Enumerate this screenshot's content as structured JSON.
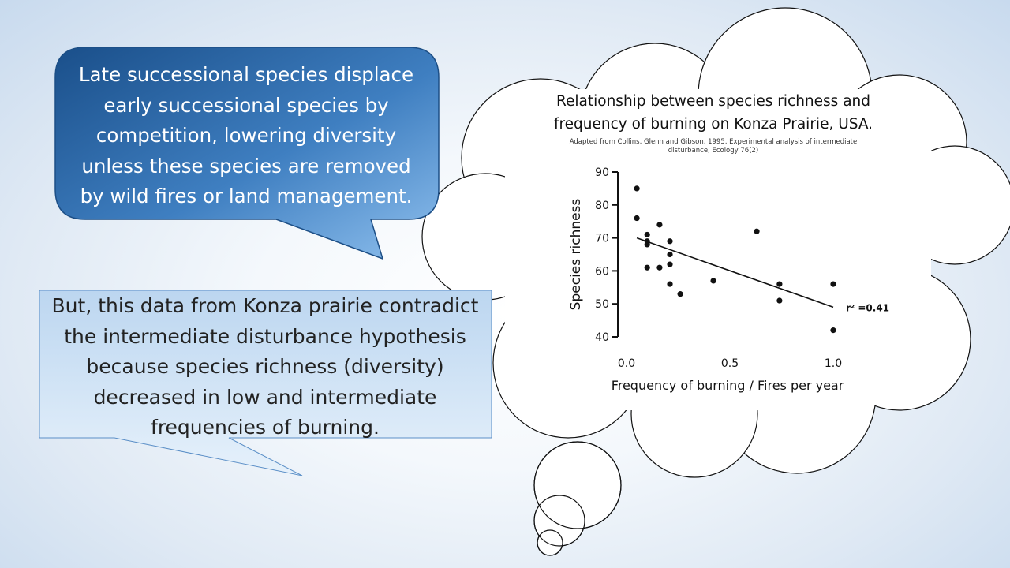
{
  "callout_blue": {
    "lines": [
      "Late successional species displace",
      "early successional species by",
      "competition, lowering diversity",
      "unless these species are removed",
      "by wild fires or land management."
    ]
  },
  "callout_light": {
    "lines": [
      "But, this data from Konza prairie contradict",
      "the intermediate disturbance hypothesis",
      "because species richness (diversity)",
      "decreased in low and intermediate",
      "frequencies of burning."
    ]
  },
  "colors": {
    "callout_blue_dark": "#1f5c9a",
    "callout_blue_light": "#7fb2e3",
    "callout_light_fill": "#cfe2f5",
    "callout_light_border": "#5b8fc7"
  },
  "chart_data": {
    "type": "scatter",
    "title_lines": [
      "Relationship between species richness and",
      "frequency of burning on Konza Prairie, USA."
    ],
    "subtitle_lines": [
      "Adapted from Collins, Glenn and Gibson, 1995, Experimental analysis of intermediate",
      "disturbance, Ecology 76(2)"
    ],
    "xlabel": "Frequency of burning / Fires per year",
    "ylabel": "Species richness",
    "xlim": [
      0,
      1
    ],
    "ylim": [
      40,
      90
    ],
    "x_ticks": [
      "0.0",
      "0.5",
      "1.0"
    ],
    "y_ticks": [
      "40",
      "50",
      "60",
      "70",
      "80",
      "90"
    ],
    "points": [
      {
        "x": 0.05,
        "y": 85
      },
      {
        "x": 0.05,
        "y": 76
      },
      {
        "x": 0.1,
        "y": 71
      },
      {
        "x": 0.1,
        "y": 69
      },
      {
        "x": 0.1,
        "y": 68
      },
      {
        "x": 0.1,
        "y": 61
      },
      {
        "x": 0.16,
        "y": 74
      },
      {
        "x": 0.16,
        "y": 61
      },
      {
        "x": 0.21,
        "y": 69
      },
      {
        "x": 0.21,
        "y": 65
      },
      {
        "x": 0.21,
        "y": 62
      },
      {
        "x": 0.21,
        "y": 56
      },
      {
        "x": 0.26,
        "y": 53
      },
      {
        "x": 0.42,
        "y": 57
      },
      {
        "x": 0.63,
        "y": 72
      },
      {
        "x": 0.74,
        "y": 56
      },
      {
        "x": 0.74,
        "y": 51
      },
      {
        "x": 1.0,
        "y": 56
      },
      {
        "x": 1.0,
        "y": 42
      }
    ],
    "regression": {
      "x": [
        0.05,
        1.0
      ],
      "y": [
        70,
        49
      ]
    },
    "annotation": "r² =0.41"
  }
}
